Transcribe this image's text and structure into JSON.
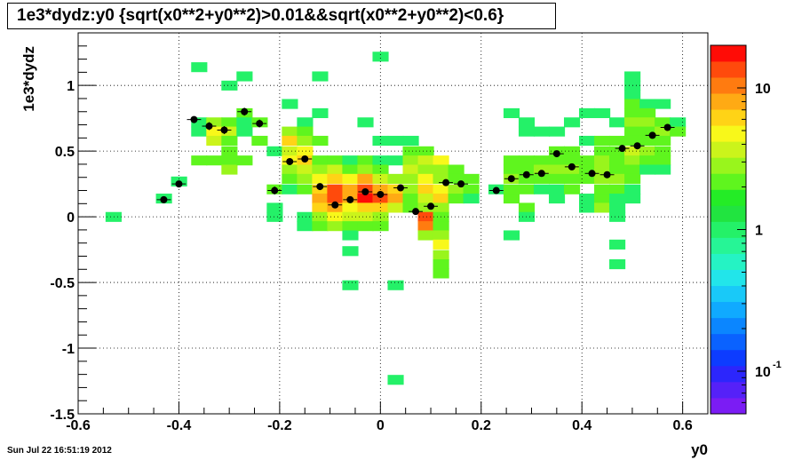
{
  "chart_data": {
    "type": "heatmap",
    "title": "1e3*dydz:y0 {sqrt(x0**2+y0**2)>0.01&&sqrt(x0**2+y0**2)<0.6}",
    "xlabel": "y0",
    "ylabel": "1e3*dydz",
    "xlim": [
      -0.6,
      0.65
    ],
    "ylim": [
      -1.5,
      1.4
    ],
    "grid": true,
    "bin_width": [
      0.03125,
      0.0725
    ],
    "x_ticks": [
      -0.6,
      -0.4,
      -0.2,
      0,
      0.2,
      0.4,
      0.6
    ],
    "x_tick_labels": [
      "-0.6",
      "-0.4",
      "-0.2",
      "0",
      "0.2",
      "0.4",
      "0.6"
    ],
    "y_ticks": [
      -1.5,
      -1,
      -0.5,
      0,
      0.5,
      1
    ],
    "y_tick_labels": [
      "-1.5",
      "-1",
      "-0.5",
      "0",
      "0.5",
      "1"
    ],
    "colorbar": {
      "scale": "log",
      "range": [
        0.05,
        20
      ],
      "ticks": [
        {
          "value": 0.1,
          "mant": "10",
          "exp": "-1"
        },
        {
          "value": 1,
          "mant": "1",
          "exp": ""
        },
        {
          "value": 10,
          "mant": "10",
          "exp": ""
        }
      ]
    },
    "cells": [
      [
        -0.53,
        0.0,
        1
      ],
      [
        -0.43,
        0.14,
        1
      ],
      [
        -0.4,
        0.27,
        1
      ],
      [
        -0.36,
        1.14,
        1
      ],
      [
        -0.36,
        0.72,
        1
      ],
      [
        -0.36,
        0.65,
        1
      ],
      [
        -0.36,
        0.43,
        2
      ],
      [
        -0.33,
        0.72,
        3
      ],
      [
        -0.33,
        0.65,
        5
      ],
      [
        -0.33,
        0.58,
        4
      ],
      [
        -0.33,
        0.43,
        2
      ],
      [
        -0.3,
        1.0,
        1
      ],
      [
        -0.3,
        0.72,
        2
      ],
      [
        -0.3,
        0.65,
        4
      ],
      [
        -0.3,
        0.58,
        2
      ],
      [
        -0.3,
        0.5,
        2
      ],
      [
        -0.3,
        0.43,
        2
      ],
      [
        -0.3,
        0.36,
        3
      ],
      [
        -0.27,
        1.07,
        1
      ],
      [
        -0.27,
        0.79,
        2
      ],
      [
        -0.27,
        0.72,
        1
      ],
      [
        -0.27,
        0.65,
        1
      ],
      [
        -0.27,
        0.43,
        2
      ],
      [
        -0.24,
        0.72,
        2
      ],
      [
        -0.24,
        0.58,
        2
      ],
      [
        -0.21,
        0.5,
        1
      ],
      [
        -0.21,
        0.21,
        2
      ],
      [
        -0.21,
        0.07,
        1
      ],
      [
        -0.21,
        0.0,
        1
      ],
      [
        -0.18,
        0.86,
        1
      ],
      [
        -0.18,
        0.65,
        3
      ],
      [
        -0.18,
        0.58,
        6
      ],
      [
        -0.18,
        0.5,
        4
      ],
      [
        -0.18,
        0.43,
        5
      ],
      [
        -0.18,
        0.36,
        3
      ],
      [
        -0.18,
        0.29,
        2
      ],
      [
        -0.18,
        0.21,
        1
      ],
      [
        -0.15,
        0.72,
        1
      ],
      [
        -0.15,
        0.65,
        2
      ],
      [
        -0.15,
        0.58,
        3
      ],
      [
        -0.15,
        0.5,
        5
      ],
      [
        -0.15,
        0.43,
        7
      ],
      [
        -0.15,
        0.36,
        4
      ],
      [
        -0.15,
        0.29,
        3
      ],
      [
        -0.15,
        0.21,
        2
      ],
      [
        -0.15,
        0.0,
        1
      ],
      [
        -0.15,
        -0.07,
        1
      ],
      [
        -0.12,
        1.07,
        1
      ],
      [
        -0.12,
        0.79,
        1
      ],
      [
        -0.12,
        0.58,
        2
      ],
      [
        -0.12,
        0.43,
        2
      ],
      [
        -0.12,
        0.36,
        3
      ],
      [
        -0.12,
        0.29,
        5
      ],
      [
        -0.12,
        0.21,
        6
      ],
      [
        -0.12,
        0.14,
        9
      ],
      [
        -0.12,
        0.07,
        7
      ],
      [
        -0.12,
        0.0,
        3
      ],
      [
        -0.12,
        -0.07,
        2
      ],
      [
        -0.09,
        0.43,
        2
      ],
      [
        -0.09,
        0.36,
        4
      ],
      [
        -0.09,
        0.29,
        7
      ],
      [
        -0.09,
        0.21,
        12
      ],
      [
        -0.09,
        0.14,
        14
      ],
      [
        -0.09,
        0.07,
        9
      ],
      [
        -0.09,
        0.0,
        5
      ],
      [
        -0.09,
        -0.07,
        3
      ],
      [
        -0.06,
        0.43,
        1
      ],
      [
        -0.06,
        0.36,
        2
      ],
      [
        -0.06,
        0.29,
        5
      ],
      [
        -0.06,
        0.21,
        8
      ],
      [
        -0.06,
        0.14,
        9
      ],
      [
        -0.06,
        0.07,
        5
      ],
      [
        -0.06,
        0.0,
        4
      ],
      [
        -0.06,
        -0.07,
        2
      ],
      [
        -0.06,
        -0.14,
        1
      ],
      [
        -0.06,
        -0.26,
        1
      ],
      [
        -0.06,
        -0.52,
        1
      ],
      [
        -0.03,
        0.72,
        1
      ],
      [
        -0.03,
        0.43,
        2
      ],
      [
        -0.03,
        0.36,
        3
      ],
      [
        -0.03,
        0.29,
        9
      ],
      [
        -0.03,
        0.21,
        12
      ],
      [
        -0.03,
        0.14,
        16
      ],
      [
        -0.03,
        0.07,
        7
      ],
      [
        -0.03,
        0.0,
        4
      ],
      [
        -0.03,
        -0.07,
        2
      ],
      [
        0.0,
        1.22,
        1
      ],
      [
        0.0,
        0.58,
        1
      ],
      [
        0.0,
        0.43,
        1
      ],
      [
        0.0,
        0.36,
        2
      ],
      [
        0.0,
        0.29,
        4
      ],
      [
        0.0,
        0.21,
        9
      ],
      [
        0.0,
        0.14,
        12
      ],
      [
        0.0,
        0.07,
        7
      ],
      [
        0.0,
        0.0,
        3
      ],
      [
        0.0,
        -0.07,
        2
      ],
      [
        0.03,
        0.58,
        1
      ],
      [
        0.03,
        0.43,
        1
      ],
      [
        0.03,
        0.29,
        3
      ],
      [
        0.03,
        0.21,
        6
      ],
      [
        0.03,
        0.14,
        8
      ],
      [
        0.03,
        0.07,
        4
      ],
      [
        0.03,
        -0.52,
        1
      ],
      [
        0.03,
        -1.24,
        1
      ],
      [
        0.06,
        0.58,
        1
      ],
      [
        0.06,
        0.5,
        2
      ],
      [
        0.06,
        0.43,
        3
      ],
      [
        0.06,
        0.36,
        4
      ],
      [
        0.06,
        0.29,
        3
      ],
      [
        0.06,
        0.21,
        3
      ],
      [
        0.06,
        0.14,
        2
      ],
      [
        0.06,
        0.07,
        2
      ],
      [
        0.09,
        0.5,
        2
      ],
      [
        0.09,
        0.43,
        4
      ],
      [
        0.09,
        0.36,
        3
      ],
      [
        0.09,
        0.29,
        5
      ],
      [
        0.09,
        0.21,
        7
      ],
      [
        0.09,
        0.14,
        4
      ],
      [
        0.09,
        0.07,
        3
      ],
      [
        0.09,
        0.0,
        12
      ],
      [
        0.09,
        -0.07,
        10
      ],
      [
        0.09,
        -0.14,
        3
      ],
      [
        0.12,
        0.43,
        5
      ],
      [
        0.12,
        0.36,
        3
      ],
      [
        0.12,
        0.29,
        3
      ],
      [
        0.12,
        0.21,
        5
      ],
      [
        0.12,
        0.14,
        6
      ],
      [
        0.12,
        0.07,
        3
      ],
      [
        0.12,
        0.0,
        2
      ],
      [
        0.12,
        -0.07,
        2
      ],
      [
        0.12,
        -0.14,
        3
      ],
      [
        0.12,
        -0.21,
        5
      ],
      [
        0.12,
        -0.29,
        3
      ],
      [
        0.12,
        -0.36,
        2
      ],
      [
        0.12,
        -0.43,
        2
      ],
      [
        0.15,
        0.36,
        2
      ],
      [
        0.15,
        0.29,
        2
      ],
      [
        0.15,
        0.21,
        3
      ],
      [
        0.15,
        0.14,
        2
      ],
      [
        0.18,
        0.29,
        2
      ],
      [
        0.18,
        0.21,
        2
      ],
      [
        0.18,
        0.14,
        1
      ],
      [
        0.23,
        0.21,
        1
      ],
      [
        0.26,
        0.79,
        1
      ],
      [
        0.26,
        0.43,
        2
      ],
      [
        0.26,
        0.36,
        2
      ],
      [
        0.26,
        0.29,
        3
      ],
      [
        0.26,
        0.21,
        2
      ],
      [
        0.26,
        0.14,
        2
      ],
      [
        0.26,
        -0.14,
        1
      ],
      [
        0.29,
        0.72,
        1
      ],
      [
        0.29,
        0.65,
        1
      ],
      [
        0.29,
        0.43,
        2
      ],
      [
        0.29,
        0.36,
        2
      ],
      [
        0.29,
        0.29,
        2
      ],
      [
        0.29,
        0.21,
        2
      ],
      [
        0.29,
        0.07,
        2
      ],
      [
        0.29,
        0.0,
        1
      ],
      [
        0.32,
        0.65,
        1
      ],
      [
        0.32,
        0.43,
        2
      ],
      [
        0.32,
        0.36,
        3
      ],
      [
        0.32,
        0.29,
        2
      ],
      [
        0.32,
        0.21,
        1
      ],
      [
        0.35,
        0.65,
        1
      ],
      [
        0.35,
        0.5,
        2
      ],
      [
        0.35,
        0.43,
        2
      ],
      [
        0.35,
        0.36,
        3
      ],
      [
        0.35,
        0.29,
        2
      ],
      [
        0.35,
        0.21,
        1
      ],
      [
        0.35,
        0.14,
        1
      ],
      [
        0.38,
        0.72,
        1
      ],
      [
        0.38,
        0.5,
        2
      ],
      [
        0.38,
        0.43,
        2
      ],
      [
        0.38,
        0.36,
        3
      ],
      [
        0.38,
        0.29,
        2
      ],
      [
        0.38,
        0.21,
        2
      ],
      [
        0.41,
        0.79,
        1
      ],
      [
        0.41,
        0.58,
        1
      ],
      [
        0.41,
        0.43,
        2
      ],
      [
        0.41,
        0.36,
        2
      ],
      [
        0.41,
        0.29,
        2
      ],
      [
        0.41,
        0.14,
        1
      ],
      [
        0.41,
        0.07,
        1
      ],
      [
        0.44,
        0.79,
        1
      ],
      [
        0.44,
        0.58,
        2
      ],
      [
        0.44,
        0.5,
        2
      ],
      [
        0.44,
        0.43,
        3
      ],
      [
        0.44,
        0.36,
        3
      ],
      [
        0.44,
        0.29,
        3
      ],
      [
        0.44,
        0.21,
        2
      ],
      [
        0.44,
        0.14,
        2
      ],
      [
        0.44,
        0.07,
        3
      ],
      [
        0.47,
        0.72,
        1
      ],
      [
        0.47,
        0.58,
        2
      ],
      [
        0.47,
        0.5,
        2
      ],
      [
        0.47,
        0.43,
        2
      ],
      [
        0.47,
        0.36,
        2
      ],
      [
        0.47,
        0.29,
        3
      ],
      [
        0.47,
        0.21,
        2
      ],
      [
        0.47,
        0.14,
        1
      ],
      [
        0.47,
        0.07,
        1
      ],
      [
        0.47,
        0.0,
        1
      ],
      [
        0.47,
        -0.21,
        1
      ],
      [
        0.47,
        -0.36,
        1
      ],
      [
        0.5,
        1.07,
        1
      ],
      [
        0.5,
        1.0,
        1
      ],
      [
        0.5,
        0.93,
        1
      ],
      [
        0.5,
        0.86,
        2
      ],
      [
        0.5,
        0.79,
        2
      ],
      [
        0.5,
        0.72,
        3
      ],
      [
        0.5,
        0.65,
        2
      ],
      [
        0.5,
        0.58,
        2
      ],
      [
        0.5,
        0.5,
        4
      ],
      [
        0.5,
        0.43,
        3
      ],
      [
        0.5,
        0.36,
        2
      ],
      [
        0.5,
        0.29,
        2
      ],
      [
        0.5,
        0.21,
        1
      ],
      [
        0.5,
        0.14,
        1
      ],
      [
        0.53,
        0.86,
        1
      ],
      [
        0.53,
        0.79,
        2
      ],
      [
        0.53,
        0.72,
        3
      ],
      [
        0.53,
        0.65,
        2
      ],
      [
        0.53,
        0.58,
        2
      ],
      [
        0.53,
        0.5,
        3
      ],
      [
        0.53,
        0.43,
        2
      ],
      [
        0.53,
        0.36,
        1
      ],
      [
        0.56,
        0.86,
        1
      ],
      [
        0.56,
        0.72,
        2
      ],
      [
        0.56,
        0.65,
        3
      ],
      [
        0.56,
        0.58,
        2
      ],
      [
        0.56,
        0.5,
        2
      ],
      [
        0.56,
        0.43,
        2
      ],
      [
        0.56,
        0.36,
        1
      ],
      [
        0.59,
        0.72,
        1
      ],
      [
        0.59,
        0.65,
        2
      ]
    ],
    "profile": [
      [
        -0.43,
        0.13,
        0.014,
        0.02
      ],
      [
        -0.4,
        0.25,
        0.014,
        0.02
      ],
      [
        -0.37,
        0.74,
        0.014,
        0.02
      ],
      [
        -0.34,
        0.69,
        0.014,
        0.03
      ],
      [
        -0.31,
        0.66,
        0.014,
        0.03
      ],
      [
        -0.27,
        0.8,
        0.014,
        0.03
      ],
      [
        -0.24,
        0.71,
        0.014,
        0.03
      ],
      [
        -0.21,
        0.2,
        0.014,
        0.03
      ],
      [
        -0.18,
        0.42,
        0.014,
        0.02
      ],
      [
        -0.15,
        0.44,
        0.014,
        0.02
      ],
      [
        -0.12,
        0.23,
        0.014,
        0.02
      ],
      [
        -0.09,
        0.09,
        0.014,
        0.02
      ],
      [
        -0.06,
        0.13,
        0.014,
        0.02
      ],
      [
        -0.03,
        0.19,
        0.014,
        0.02
      ],
      [
        0.0,
        0.17,
        0.014,
        0.02
      ],
      [
        0.04,
        0.22,
        0.014,
        0.02
      ],
      [
        0.07,
        0.04,
        0.014,
        0.02
      ],
      [
        0.1,
        0.08,
        0.014,
        0.02
      ],
      [
        0.13,
        0.26,
        0.014,
        0.02
      ],
      [
        0.16,
        0.25,
        0.014,
        0.02
      ],
      [
        0.23,
        0.2,
        0.014,
        0.02
      ],
      [
        0.26,
        0.29,
        0.014,
        0.02
      ],
      [
        0.29,
        0.32,
        0.014,
        0.02
      ],
      [
        0.32,
        0.33,
        0.014,
        0.02
      ],
      [
        0.35,
        0.48,
        0.014,
        0.02
      ],
      [
        0.38,
        0.38,
        0.014,
        0.02
      ],
      [
        0.42,
        0.33,
        0.014,
        0.02
      ],
      [
        0.45,
        0.32,
        0.014,
        0.02
      ],
      [
        0.48,
        0.52,
        0.014,
        0.02
      ],
      [
        0.51,
        0.54,
        0.014,
        0.02
      ],
      [
        0.54,
        0.62,
        0.014,
        0.02
      ],
      [
        0.57,
        0.68,
        0.014,
        0.02
      ]
    ]
  },
  "timestamp": "Sun Jul 22 16:51:19 2012"
}
